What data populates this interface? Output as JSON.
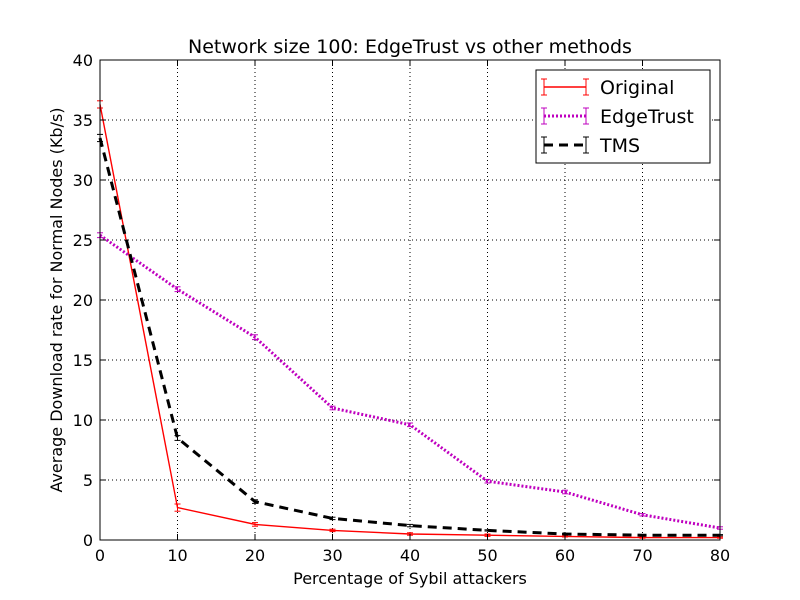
{
  "chart_data": {
    "type": "line",
    "title": "Network size 100: EdgeTrust vs other methods",
    "xlabel": "Percentage of Sybil attackers",
    "ylabel": "Average Download rate for Normal Nodes (Kb/s)",
    "xlim": [
      0,
      80
    ],
    "ylim": [
      0,
      40
    ],
    "xticks": [
      "0",
      "10",
      "20",
      "30",
      "40",
      "50",
      "60",
      "70",
      "80"
    ],
    "yticks": [
      "0",
      "5",
      "10",
      "15",
      "20",
      "25",
      "30",
      "35",
      "40"
    ],
    "grid": true,
    "legend_position": "top-right",
    "x": [
      0,
      10,
      20,
      30,
      40,
      50,
      60,
      70,
      80
    ],
    "series": [
      {
        "name": "Original",
        "color": "#ff0000",
        "line_style": "solid",
        "values": [
          36.3,
          2.7,
          1.3,
          0.8,
          0.5,
          0.4,
          0.3,
          0.2,
          0.2
        ],
        "errors": [
          0.3,
          0.3,
          0.15,
          0.1,
          0.1,
          0.1,
          0.05,
          0.05,
          0.05
        ]
      },
      {
        "name": "EdgeTrust",
        "color": "#bf00bf",
        "line_style": "dotted",
        "values": [
          25.4,
          20.9,
          16.9,
          11.0,
          9.6,
          4.9,
          4.0,
          2.1,
          1.0
        ],
        "errors": [
          0.2,
          0.2,
          0.2,
          0.15,
          0.15,
          0.15,
          0.15,
          0.1,
          0.1
        ]
      },
      {
        "name": "TMS",
        "color": "#000000",
        "line_style": "dashed",
        "values": [
          33.5,
          8.5,
          3.2,
          1.8,
          1.2,
          0.8,
          0.5,
          0.4,
          0.4
        ],
        "errors": [
          0.3,
          0.2,
          0.15,
          0.1,
          0.1,
          0.05,
          0.05,
          0.05,
          0.05
        ]
      }
    ]
  }
}
